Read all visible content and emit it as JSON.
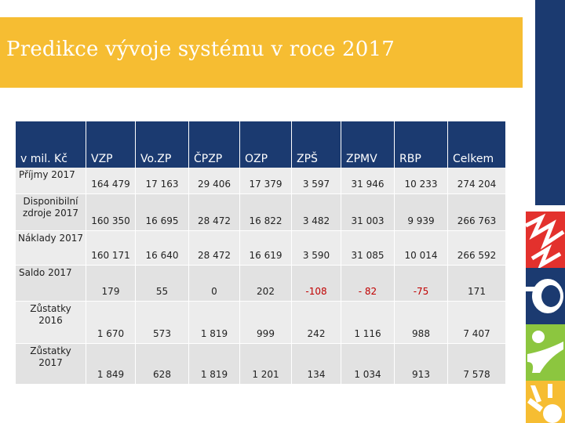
{
  "title": "Predikce vývoje systému v roce 2017",
  "table": {
    "headers": [
      "v mil. Kč",
      "VZP",
      "Vo.ZP",
      "ČPZP",
      "OZP",
      "ZPŠ",
      "ZPMV",
      "RBP",
      "Celkem"
    ],
    "rows": [
      {
        "label": "Příjmy 2017",
        "values": [
          "164 479",
          "17 163",
          "29 406",
          "17 379",
          "3 597",
          "31 946",
          "10 233",
          "274 204"
        ]
      },
      {
        "label": "Disponibilní zdroje 2017",
        "values": [
          "160 350",
          "16 695",
          "28 472",
          "16 822",
          "3 482",
          "31 003",
          "9 939",
          "266 763"
        ]
      },
      {
        "label": "Náklady 2017",
        "values": [
          "160 171",
          "16 640",
          "28 472",
          "16 619",
          "3 590",
          "31 085",
          "10 014",
          "266 592"
        ]
      },
      {
        "label": "Saldo 2017",
        "values": [
          "179",
          "55",
          "0",
          "202",
          "-108",
          "- 82",
          "-75",
          "171"
        ]
      },
      {
        "label": "Zůstatky 2016",
        "values": [
          "1 670",
          "573",
          "1 819",
          "999",
          "242",
          "1 116",
          "988",
          "7 407"
        ]
      },
      {
        "label": "Zůstatky 2017",
        "values": [
          "1 849",
          "628",
          "1 819",
          "1 201",
          "134",
          "1 034",
          "913",
          "7 578"
        ]
      }
    ]
  },
  "colors": {
    "title_bar": "#f6bd32",
    "header_bg": "#1b3a70",
    "negative": "#c00000",
    "deco_blue": "#1b3a70",
    "deco_red": "#e3312d",
    "deco_green": "#8cc63f",
    "deco_yellow": "#f6bd32"
  }
}
